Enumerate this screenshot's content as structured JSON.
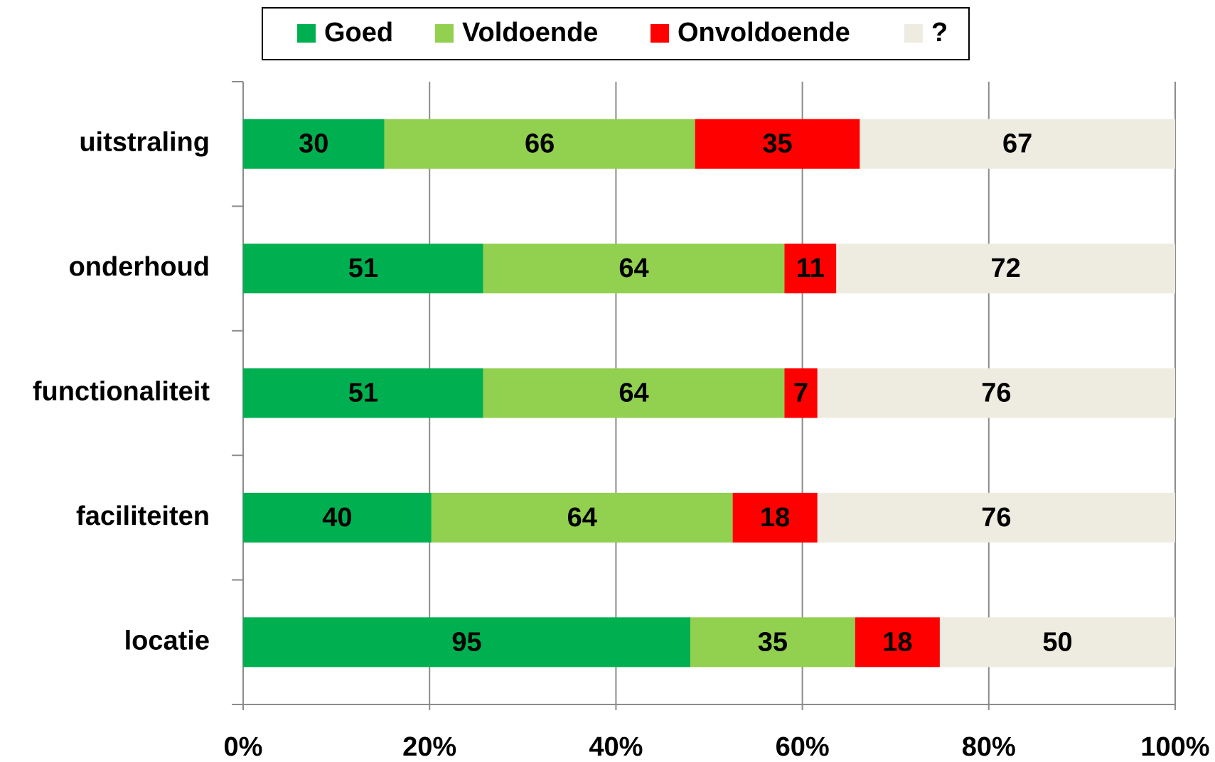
{
  "chart_data": {
    "type": "bar",
    "orientation": "horizontal",
    "stacking": "percent",
    "categories": [
      "uitstraling",
      "onderhoud",
      "functionaliteit",
      "faciliteiten",
      "locatie"
    ],
    "series": [
      {
        "name": "Goed",
        "color": "#00b050",
        "values": [
          30,
          51,
          51,
          40,
          95
        ]
      },
      {
        "name": "Voldoende",
        "color": "#92d050",
        "values": [
          66,
          64,
          64,
          64,
          35
        ]
      },
      {
        "name": "Onvoldoende",
        "color": "#ff0000",
        "values": [
          35,
          11,
          7,
          18,
          18
        ]
      },
      {
        "name": "?",
        "color": "#eeece1",
        "values": [
          67,
          72,
          76,
          76,
          50
        ]
      }
    ],
    "xlim": [
      0,
      100
    ],
    "xticks": [
      {
        "value": 0,
        "label": "0%"
      },
      {
        "value": 20,
        "label": "20%"
      },
      {
        "value": 40,
        "label": "40%"
      },
      {
        "value": 60,
        "label": "60%"
      },
      {
        "value": 80,
        "label": "80%"
      },
      {
        "value": 100,
        "label": "100%"
      }
    ],
    "grid": true,
    "legend": "top"
  }
}
